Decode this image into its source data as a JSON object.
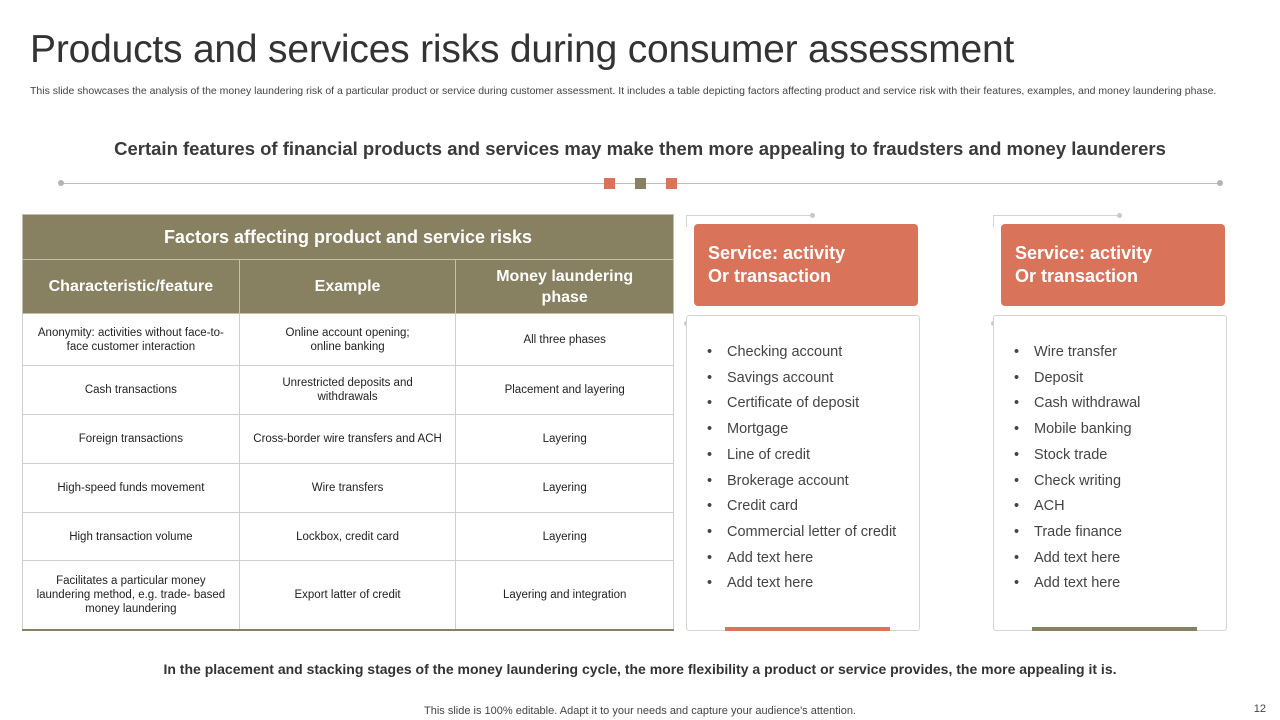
{
  "slide": {
    "title": "Products and services risks during consumer assessment",
    "description": "This slide showcases the analysis of the money laundering risk of a particular product or service during customer assessment. It includes a table depicting factors affecting product and service risk with their features, examples, and money laundering phase.",
    "subheading": "Certain features of financial products and services may make them more appealing to fraudsters and money launderers",
    "footer_note": "In the placement and stacking stages of the money laundering cycle, the more flexibility a product or service provides, the more appealing it is.",
    "footer_small": "This slide is 100% editable. Adapt it to your needs and capture your audience's attention.",
    "page_number": "12"
  },
  "colors": {
    "olive": "#878061",
    "coral": "#d9735a"
  },
  "table": {
    "title": "Factors affecting product and service risks",
    "columns": [
      "Characteristic/feature",
      "Example",
      "Money laundering phase"
    ],
    "rows": [
      [
        "Anonymity:  activities without face-to-face customer interaction",
        "Online account opening; online banking",
        "All three phases"
      ],
      [
        "Cash transactions",
        "Unrestricted deposits and withdrawals",
        "Placement and layering"
      ],
      [
        "Foreign transactions",
        "Cross-border wire transfers and ACH",
        "Layering"
      ],
      [
        "High-speed funds movement",
        "Wire transfers",
        "Layering"
      ],
      [
        "High transaction volume",
        "Lockbox, credit card",
        "Layering"
      ],
      [
        "Facilitates a particular money laundering method, e.g. trade- based money laundering",
        "Export latter of credit",
        "Layering and integration"
      ]
    ]
  },
  "cards": [
    {
      "title_line1": "Service: activity",
      "title_line2": "Or transaction",
      "items": [
        "Checking account",
        "Savings account",
        "Certificate of deposit",
        "Mortgage",
        "Line of credit",
        "Brokerage account",
        "Credit card",
        "Commercial letter of credit",
        "Add text here",
        "Add text here"
      ]
    },
    {
      "title_line1": "Service: activity",
      "title_line2": "Or transaction",
      "items": [
        "Wire transfer",
        "Deposit",
        "Cash withdrawal",
        "Mobile banking",
        "Stock trade",
        "Check writing",
        "ACH",
        "Trade finance",
        "Add text here",
        "Add text here"
      ]
    }
  ]
}
